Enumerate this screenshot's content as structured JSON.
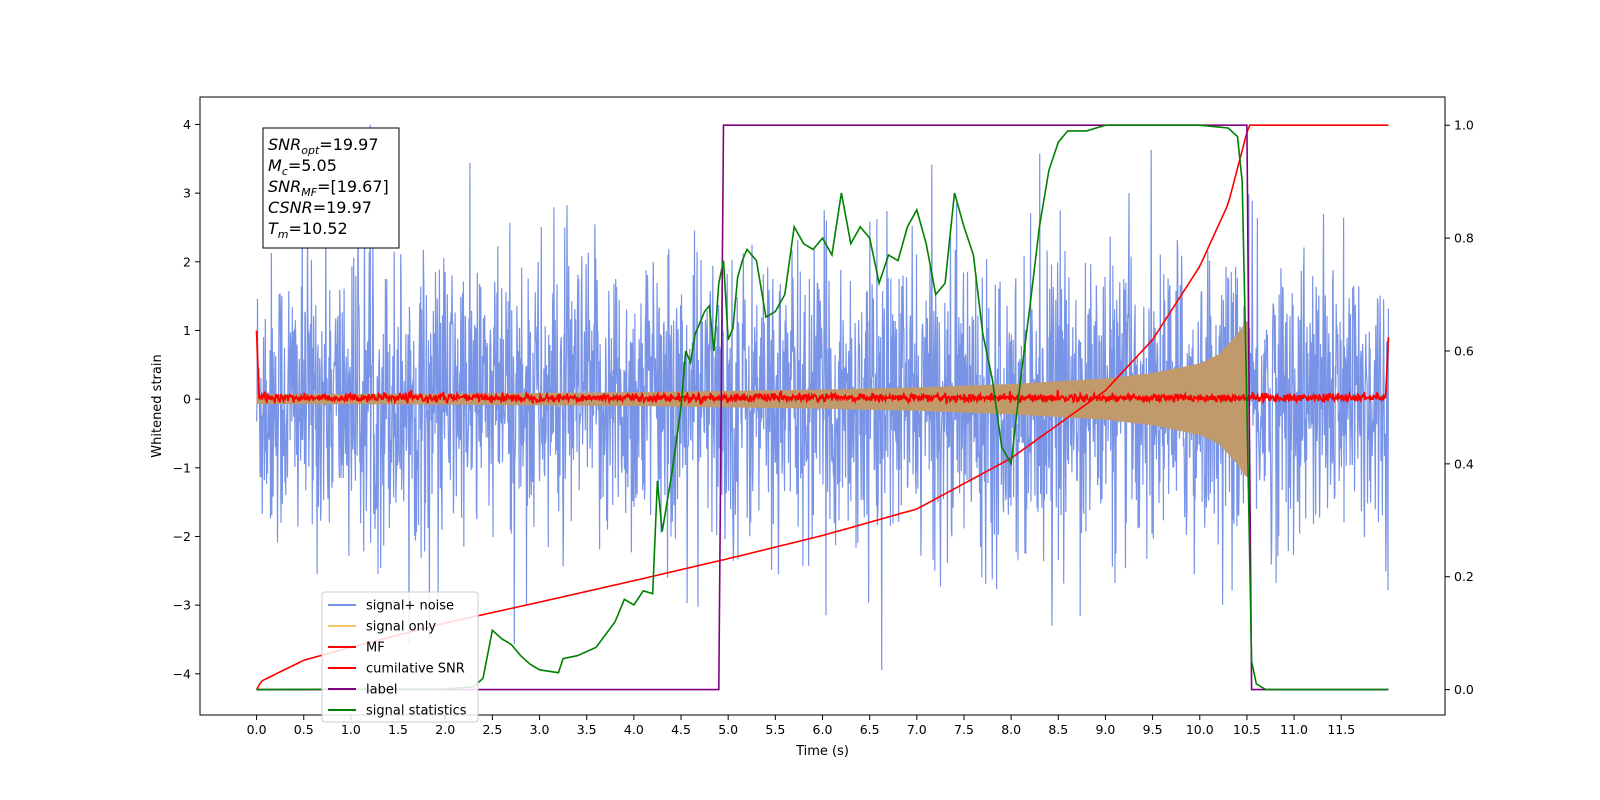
{
  "chart_data": {
    "type": "line",
    "xlabel": "Time (s)",
    "ylabel": "Whitened strain",
    "xlim": [
      -0.6,
      12.6
    ],
    "ylim": [
      -4.6,
      4.4
    ],
    "y2lim": [
      -0.045,
      1.05
    ],
    "x_ticks": [
      0.0,
      0.5,
      1.0,
      1.5,
      2.0,
      2.5,
      3.0,
      3.5,
      4.0,
      4.5,
      5.0,
      5.5,
      6.0,
      6.5,
      7.0,
      7.5,
      8.0,
      8.5,
      9.0,
      9.5,
      10.0,
      10.5,
      11.0,
      11.5
    ],
    "x_tick_labels": [
      "0.0",
      "0.5",
      "1.0",
      "1.5",
      "2.0",
      "2.5",
      "3.0",
      "3.5",
      "4.0",
      "4.5",
      "5.0",
      "5.5",
      "6.0",
      "6.5",
      "7.0",
      "7.5",
      "8.0",
      "8.5",
      "9.0",
      "9.5",
      "10.0",
      "10.5",
      "11.0",
      "11.5"
    ],
    "y_ticks": [
      -4,
      -3,
      -2,
      -1,
      0,
      1,
      2,
      3,
      4
    ],
    "y_tick_labels": [
      "−4",
      "−3",
      "−2",
      "−1",
      "0",
      "1",
      "2",
      "3",
      "4"
    ],
    "y2_ticks": [
      0.0,
      0.2,
      0.4,
      0.6,
      0.8,
      1.0
    ],
    "y2_tick_labels": [
      "0.0",
      "0.2",
      "0.4",
      "0.6",
      "0.8",
      "1.0"
    ],
    "legend_position": "lower-left",
    "info_box": {
      "lines": [
        {
          "name": "SNR",
          "sub": "opt",
          "value": "=19.97"
        },
        {
          "name": "M",
          "sub": "c",
          "value": "=5.05"
        },
        {
          "name": "SNR",
          "sub": "MF",
          "value": "=[19.67]"
        },
        {
          "name": "CSNR",
          "sub": "",
          "value": "=19.97"
        },
        {
          "name": "T",
          "sub": "m",
          "value": "=10.52"
        }
      ]
    },
    "series": [
      {
        "name": "signal+ noise",
        "color": "#7994e6",
        "kind": "noise",
        "x_range": [
          0.0,
          12.0
        ],
        "peak_amplitude": 4.0,
        "typical_envelope": 2.3
      },
      {
        "name": "signal only",
        "color": "#f5c56a",
        "kind": "chirp_envelope",
        "x_range": [
          0.0,
          10.52
        ],
        "x": [
          0.0,
          2.0,
          4.0,
          5.0,
          6.0,
          7.0,
          8.0,
          9.0,
          9.5,
          10.0,
          10.2,
          10.4,
          10.5
        ],
        "amplitude": [
          0.07,
          0.08,
          0.1,
          0.12,
          0.14,
          0.17,
          0.22,
          0.3,
          0.38,
          0.52,
          0.65,
          0.95,
          1.15
        ]
      },
      {
        "name": "MF",
        "color": "#ff0000",
        "kind": "noisy_flat",
        "x_range": [
          0.0,
          12.0
        ],
        "level": 0.02,
        "noise": 0.06
      },
      {
        "name": "cumilative SNR",
        "color": "#ff0000",
        "axis": "right",
        "x": [
          0.0,
          0.05,
          0.5,
          1.0,
          2.0,
          3.0,
          4.0,
          5.0,
          6.0,
          7.0,
          8.0,
          9.0,
          9.5,
          10.0,
          10.3,
          10.52,
          12.0
        ],
        "y": [
          0.0,
          0.015,
          0.052,
          0.075,
          0.118,
          0.155,
          0.193,
          0.232,
          0.273,
          0.32,
          0.41,
          0.53,
          0.62,
          0.75,
          0.86,
          1.0,
          1.0
        ]
      },
      {
        "name": "label",
        "color": "#800080",
        "axis": "right",
        "x": [
          0.0,
          4.9,
          4.95,
          10.5,
          10.55,
          12.0
        ],
        "y": [
          0.0,
          0.0,
          1.0,
          1.0,
          0.0,
          0.0
        ]
      },
      {
        "name": "signal statistics",
        "color": "#008000",
        "axis": "right",
        "x": [
          0.0,
          2.0,
          2.3,
          2.4,
          2.5,
          2.6,
          2.7,
          2.8,
          2.9,
          3.0,
          3.2,
          3.25,
          3.4,
          3.6,
          3.8,
          3.9,
          4.0,
          4.1,
          4.2,
          4.25,
          4.3,
          4.4,
          4.5,
          4.55,
          4.6,
          4.65,
          4.7,
          4.75,
          4.8,
          4.85,
          4.9,
          4.95,
          5.0,
          5.05,
          5.1,
          5.15,
          5.2,
          5.3,
          5.4,
          5.5,
          5.6,
          5.7,
          5.8,
          5.9,
          6.0,
          6.1,
          6.2,
          6.3,
          6.4,
          6.5,
          6.6,
          6.7,
          6.8,
          6.9,
          7.0,
          7.1,
          7.2,
          7.3,
          7.4,
          7.5,
          7.6,
          7.7,
          7.8,
          7.9,
          8.0,
          8.1,
          8.2,
          8.3,
          8.4,
          8.5,
          8.6,
          8.8,
          9.0,
          9.3,
          9.5,
          9.8,
          10.0,
          10.3,
          10.4,
          10.45,
          10.5,
          10.55,
          10.6,
          10.7,
          11.0,
          11.5,
          12.0
        ],
        "y": [
          0.0,
          0.001,
          0.005,
          0.02,
          0.105,
          0.09,
          0.08,
          0.06,
          0.045,
          0.035,
          0.03,
          0.055,
          0.06,
          0.075,
          0.12,
          0.16,
          0.15,
          0.175,
          0.17,
          0.37,
          0.28,
          0.38,
          0.5,
          0.6,
          0.58,
          0.63,
          0.65,
          0.67,
          0.68,
          0.6,
          0.72,
          0.76,
          0.62,
          0.64,
          0.73,
          0.76,
          0.78,
          0.76,
          0.66,
          0.67,
          0.7,
          0.82,
          0.79,
          0.78,
          0.8,
          0.77,
          0.88,
          0.79,
          0.82,
          0.8,
          0.72,
          0.77,
          0.76,
          0.82,
          0.85,
          0.79,
          0.7,
          0.72,
          0.88,
          0.82,
          0.77,
          0.63,
          0.55,
          0.43,
          0.4,
          0.55,
          0.68,
          0.82,
          0.92,
          0.97,
          0.99,
          0.99,
          1.0,
          1.0,
          1.0,
          1.0,
          1.0,
          0.995,
          0.98,
          0.9,
          0.5,
          0.05,
          0.01,
          0.0,
          0.0,
          0.0,
          0.0
        ]
      }
    ]
  }
}
